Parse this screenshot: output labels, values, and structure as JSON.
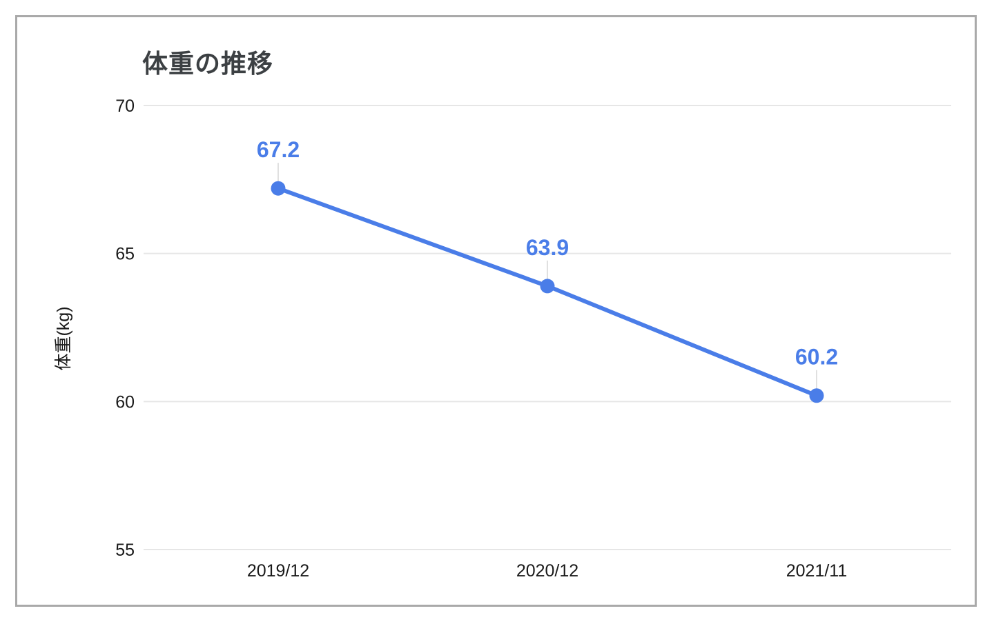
{
  "chart_data": {
    "type": "line",
    "title": "体重の推移",
    "xlabel": "",
    "ylabel": "体重(kg)",
    "categories": [
      "2019/12",
      "2020/12",
      "2021/11"
    ],
    "series": [
      {
        "name": "体重",
        "values": [
          67.2,
          63.9,
          60.2
        ]
      }
    ],
    "data_labels": [
      "67.2",
      "63.9",
      "60.2"
    ],
    "ylim": [
      55,
      70
    ],
    "yticks": [
      70,
      65,
      60,
      55
    ],
    "grid": true,
    "legend_position": "none",
    "colors": {
      "series": "#4a7de8",
      "grid": "#e6e6e6",
      "leader": "#e0e0e0",
      "title": "#3c4043",
      "axis_text": "#1a1a1a"
    }
  }
}
